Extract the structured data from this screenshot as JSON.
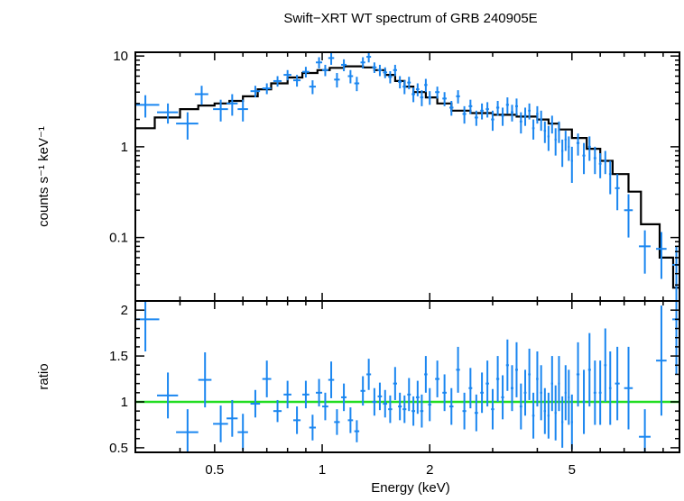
{
  "chart_data": {
    "type": "scatter",
    "title": "Swift−XRT WT spectrum of GRB 240905E",
    "xlabel": "Energy (keV)",
    "x_scale": "log",
    "xlim": [
      0.3,
      10
    ],
    "x_ticks": [
      {
        "v": 0.5,
        "label": "0.5"
      },
      {
        "v": 1,
        "label": "1"
      },
      {
        "v": 2,
        "label": "2"
      },
      {
        "v": 5,
        "label": "5"
      }
    ],
    "colors": {
      "data": "#1a86f0",
      "model": "#000000",
      "unity": "#22dd22"
    },
    "panels": [
      {
        "name": "spectrum",
        "ylabel": "counts s⁻¹ keV⁻¹",
        "y_scale": "log",
        "ylim": [
          0.02,
          11
        ],
        "y_ticks": [
          {
            "v": 10,
            "label": "10"
          },
          {
            "v": 1,
            "label": "1"
          },
          {
            "v": 0.1,
            "label": "0.1"
          }
        ],
        "model_steps": [
          [
            0.3,
            1.6
          ],
          [
            0.34,
            2.1
          ],
          [
            0.4,
            2.6
          ],
          [
            0.45,
            2.85
          ],
          [
            0.5,
            3.0
          ],
          [
            0.55,
            3.2
          ],
          [
            0.6,
            3.6
          ],
          [
            0.66,
            4.3
          ],
          [
            0.72,
            5.0
          ],
          [
            0.8,
            5.8
          ],
          [
            0.88,
            6.5
          ],
          [
            0.97,
            7.0
          ],
          [
            1.05,
            7.4
          ],
          [
            1.15,
            7.7
          ],
          [
            1.3,
            7.5
          ],
          [
            1.4,
            7.0
          ],
          [
            1.5,
            6.2
          ],
          [
            1.6,
            5.3
          ],
          [
            1.7,
            4.6
          ],
          [
            1.8,
            4.0
          ],
          [
            1.95,
            3.5
          ],
          [
            2.1,
            3.0
          ],
          [
            2.3,
            2.5
          ],
          [
            2.6,
            2.35
          ],
          [
            3.0,
            2.25
          ],
          [
            3.5,
            2.15
          ],
          [
            4.0,
            2.0
          ],
          [
            4.3,
            1.8
          ],
          [
            4.6,
            1.55
          ],
          [
            5.0,
            1.25
          ],
          [
            5.5,
            0.95
          ],
          [
            6.0,
            0.7
          ],
          [
            6.5,
            0.5
          ],
          [
            7.2,
            0.32
          ],
          [
            7.8,
            0.14
          ],
          [
            8.8,
            0.06
          ],
          [
            9.6,
            0.028
          ],
          [
            10.0,
            0.028
          ]
        ],
        "points": [
          [
            0.32,
            0.03,
            2.9,
            0.8
          ],
          [
            0.37,
            0.025,
            2.4,
            0.6
          ],
          [
            0.42,
            0.03,
            1.8,
            0.6
          ],
          [
            0.46,
            0.02,
            3.8,
            0.9
          ],
          [
            0.52,
            0.025,
            2.6,
            0.7
          ],
          [
            0.56,
            0.02,
            3.0,
            0.8
          ],
          [
            0.6,
            0.02,
            2.6,
            0.7
          ],
          [
            0.65,
            0.02,
            4.1,
            0.6
          ],
          [
            0.7,
            0.02,
            4.4,
            0.6
          ],
          [
            0.75,
            0.02,
            5.3,
            0.7
          ],
          [
            0.8,
            0.02,
            6.2,
            0.8
          ],
          [
            0.85,
            0.02,
            5.4,
            0.8
          ],
          [
            0.9,
            0.02,
            6.7,
            0.9
          ],
          [
            0.94,
            0.02,
            4.6,
            0.8
          ],
          [
            0.98,
            0.02,
            8.5,
            1.2
          ],
          [
            1.02,
            0.02,
            7.0,
            1.0
          ],
          [
            1.06,
            0.02,
            9.5,
            1.5
          ],
          [
            1.1,
            0.02,
            5.5,
            1.0
          ],
          [
            1.15,
            0.02,
            8.0,
            1.2
          ],
          [
            1.2,
            0.02,
            6.0,
            1.0
          ],
          [
            1.25,
            0.02,
            5.0,
            0.9
          ],
          [
            1.3,
            0.02,
            8.5,
            1.2
          ],
          [
            1.35,
            0.02,
            9.8,
            1.3
          ],
          [
            1.4,
            0.02,
            7.5,
            1.0
          ],
          [
            1.45,
            0.02,
            7.0,
            1.0
          ],
          [
            1.5,
            0.02,
            6.6,
            0.9
          ],
          [
            1.55,
            0.02,
            5.9,
            0.9
          ],
          [
            1.6,
            0.02,
            7.0,
            1.0
          ],
          [
            1.65,
            0.02,
            5.2,
            0.8
          ],
          [
            1.7,
            0.02,
            4.6,
            0.8
          ],
          [
            1.75,
            0.02,
            5.1,
            0.8
          ],
          [
            1.8,
            0.02,
            3.8,
            0.7
          ],
          [
            1.85,
            0.02,
            4.3,
            0.7
          ],
          [
            1.9,
            0.02,
            3.5,
            0.7
          ],
          [
            1.95,
            0.02,
            4.8,
            0.8
          ],
          [
            2.0,
            0.02,
            3.5,
            0.6
          ],
          [
            2.1,
            0.03,
            4.0,
            0.6
          ],
          [
            2.2,
            0.03,
            3.4,
            0.6
          ],
          [
            2.3,
            0.03,
            2.7,
            0.5
          ],
          [
            2.4,
            0.03,
            3.6,
            0.6
          ],
          [
            2.5,
            0.03,
            2.3,
            0.5
          ],
          [
            2.6,
            0.03,
            2.8,
            0.5
          ],
          [
            2.7,
            0.03,
            2.1,
            0.4
          ],
          [
            2.8,
            0.03,
            2.5,
            0.5
          ],
          [
            2.9,
            0.03,
            2.6,
            0.5
          ],
          [
            3.0,
            0.03,
            2.0,
            0.5
          ],
          [
            3.1,
            0.03,
            2.7,
            0.5
          ],
          [
            3.2,
            0.03,
            2.2,
            0.5
          ],
          [
            3.3,
            0.03,
            2.9,
            0.6
          ],
          [
            3.4,
            0.03,
            2.4,
            0.5
          ],
          [
            3.5,
            0.03,
            2.8,
            0.6
          ],
          [
            3.6,
            0.03,
            1.9,
            0.5
          ],
          [
            3.7,
            0.03,
            2.2,
            0.5
          ],
          [
            3.8,
            0.03,
            2.5,
            0.5
          ],
          [
            3.9,
            0.03,
            1.6,
            0.4
          ],
          [
            4.0,
            0.03,
            2.3,
            0.5
          ],
          [
            4.1,
            0.03,
            2.0,
            0.5
          ],
          [
            4.2,
            0.03,
            1.5,
            0.4
          ],
          [
            4.3,
            0.03,
            1.3,
            0.4
          ],
          [
            4.4,
            0.03,
            1.8,
            0.4
          ],
          [
            4.5,
            0.03,
            1.2,
            0.4
          ],
          [
            4.6,
            0.03,
            1.5,
            0.4
          ],
          [
            4.7,
            0.03,
            0.9,
            0.3
          ],
          [
            4.8,
            0.03,
            1.2,
            0.3
          ],
          [
            4.9,
            0.03,
            1.0,
            0.3
          ],
          [
            5.0,
            0.03,
            0.7,
            0.3
          ],
          [
            5.2,
            0.05,
            1.1,
            0.3
          ],
          [
            5.4,
            0.05,
            0.8,
            0.3
          ],
          [
            5.6,
            0.05,
            1.0,
            0.3
          ],
          [
            5.8,
            0.05,
            0.75,
            0.25
          ],
          [
            6.0,
            0.05,
            0.65,
            0.2
          ],
          [
            6.2,
            0.05,
            0.7,
            0.2
          ],
          [
            6.4,
            0.05,
            0.5,
            0.2
          ],
          [
            6.7,
            0.1,
            0.35,
            0.15
          ],
          [
            7.2,
            0.2,
            0.2,
            0.1
          ],
          [
            8.0,
            0.3,
            0.08,
            0.04
          ],
          [
            8.9,
            0.3,
            0.075,
            0.04
          ],
          [
            9.8,
            0.25,
            0.05,
            0.03
          ]
        ]
      },
      {
        "name": "ratio",
        "ylabel": "ratio",
        "y_scale": "linear",
        "ylim": [
          0.45,
          2.1
        ],
        "y_ticks": [
          {
            "v": 2,
            "label": "2"
          },
          {
            "v": 1.5,
            "label": "1.5"
          },
          {
            "v": 1,
            "label": "1"
          },
          {
            "v": 0.5,
            "label": "0.5"
          }
        ],
        "reference_line": 1,
        "points": [
          [
            0.32,
            0.03,
            1.9,
            0.35
          ],
          [
            0.37,
            0.025,
            1.07,
            0.25
          ],
          [
            0.42,
            0.03,
            0.67,
            0.25
          ],
          [
            0.47,
            0.02,
            1.24,
            0.3
          ],
          [
            0.52,
            0.025,
            0.76,
            0.2
          ],
          [
            0.56,
            0.02,
            0.82,
            0.2
          ],
          [
            0.6,
            0.02,
            0.67,
            0.2
          ],
          [
            0.65,
            0.02,
            0.98,
            0.15
          ],
          [
            0.7,
            0.02,
            1.25,
            0.2
          ],
          [
            0.75,
            0.02,
            0.9,
            0.12
          ],
          [
            0.8,
            0.02,
            1.08,
            0.15
          ],
          [
            0.85,
            0.02,
            0.8,
            0.15
          ],
          [
            0.9,
            0.02,
            1.08,
            0.15
          ],
          [
            0.94,
            0.02,
            0.72,
            0.14
          ],
          [
            0.98,
            0.02,
            1.1,
            0.15
          ],
          [
            1.02,
            0.02,
            0.95,
            0.15
          ],
          [
            1.06,
            0.02,
            1.24,
            0.2
          ],
          [
            1.1,
            0.02,
            0.78,
            0.14
          ],
          [
            1.15,
            0.02,
            1.05,
            0.15
          ],
          [
            1.2,
            0.02,
            0.8,
            0.14
          ],
          [
            1.25,
            0.02,
            0.68,
            0.12
          ],
          [
            1.3,
            0.02,
            1.12,
            0.16
          ],
          [
            1.35,
            0.02,
            1.3,
            0.17
          ],
          [
            1.4,
            0.02,
            1.0,
            0.15
          ],
          [
            1.45,
            0.02,
            1.06,
            0.15
          ],
          [
            1.5,
            0.02,
            0.98,
            0.15
          ],
          [
            1.55,
            0.02,
            0.92,
            0.15
          ],
          [
            1.6,
            0.02,
            1.2,
            0.18
          ],
          [
            1.65,
            0.02,
            0.95,
            0.15
          ],
          [
            1.7,
            0.02,
            0.92,
            0.15
          ],
          [
            1.75,
            0.02,
            1.08,
            0.18
          ],
          [
            1.8,
            0.02,
            0.9,
            0.16
          ],
          [
            1.85,
            0.02,
            1.05,
            0.18
          ],
          [
            1.9,
            0.02,
            0.9,
            0.18
          ],
          [
            1.95,
            0.02,
            1.3,
            0.2
          ],
          [
            2.0,
            0.02,
            0.97,
            0.18
          ],
          [
            2.1,
            0.03,
            1.25,
            0.2
          ],
          [
            2.2,
            0.03,
            1.1,
            0.2
          ],
          [
            2.3,
            0.03,
            0.95,
            0.2
          ],
          [
            2.4,
            0.03,
            1.35,
            0.25
          ],
          [
            2.5,
            0.03,
            0.9,
            0.2
          ],
          [
            2.6,
            0.03,
            1.15,
            0.22
          ],
          [
            2.7,
            0.03,
            0.88,
            0.2
          ],
          [
            2.8,
            0.03,
            1.1,
            0.22
          ],
          [
            2.9,
            0.03,
            1.2,
            0.25
          ],
          [
            3.0,
            0.03,
            0.92,
            0.22
          ],
          [
            3.1,
            0.03,
            1.25,
            0.25
          ],
          [
            3.2,
            0.03,
            1.05,
            0.24
          ],
          [
            3.3,
            0.03,
            1.4,
            0.28
          ],
          [
            3.4,
            0.03,
            1.15,
            0.25
          ],
          [
            3.5,
            0.03,
            1.35,
            0.3
          ],
          [
            3.6,
            0.03,
            0.95,
            0.25
          ],
          [
            3.7,
            0.03,
            1.1,
            0.25
          ],
          [
            3.8,
            0.03,
            1.3,
            0.28
          ],
          [
            3.9,
            0.03,
            0.85,
            0.25
          ],
          [
            4.0,
            0.03,
            1.25,
            0.3
          ],
          [
            4.1,
            0.03,
            1.1,
            0.3
          ],
          [
            4.2,
            0.03,
            0.9,
            0.25
          ],
          [
            4.3,
            0.03,
            0.85,
            0.25
          ],
          [
            4.4,
            0.03,
            1.2,
            0.3
          ],
          [
            4.5,
            0.03,
            0.88,
            0.3
          ],
          [
            4.6,
            0.03,
            1.2,
            0.3
          ],
          [
            4.7,
            0.03,
            0.78,
            0.28
          ],
          [
            4.8,
            0.03,
            1.1,
            0.3
          ],
          [
            4.9,
            0.03,
            1.05,
            0.3
          ],
          [
            5.0,
            0.03,
            0.78,
            0.3
          ],
          [
            5.2,
            0.05,
            1.3,
            0.35
          ],
          [
            5.4,
            0.05,
            1.0,
            0.35
          ],
          [
            5.6,
            0.05,
            1.35,
            0.4
          ],
          [
            5.8,
            0.05,
            1.1,
            0.35
          ],
          [
            6.0,
            0.05,
            1.1,
            0.35
          ],
          [
            6.2,
            0.05,
            1.4,
            0.4
          ],
          [
            6.4,
            0.05,
            1.15,
            0.4
          ],
          [
            6.7,
            0.1,
            1.2,
            0.4
          ],
          [
            7.2,
            0.2,
            1.15,
            0.45
          ],
          [
            8.0,
            0.3,
            0.62,
            0.3
          ],
          [
            8.9,
            0.3,
            1.45,
            0.6
          ],
          [
            9.8,
            0.25,
            1.9,
            0.6
          ]
        ]
      }
    ]
  }
}
